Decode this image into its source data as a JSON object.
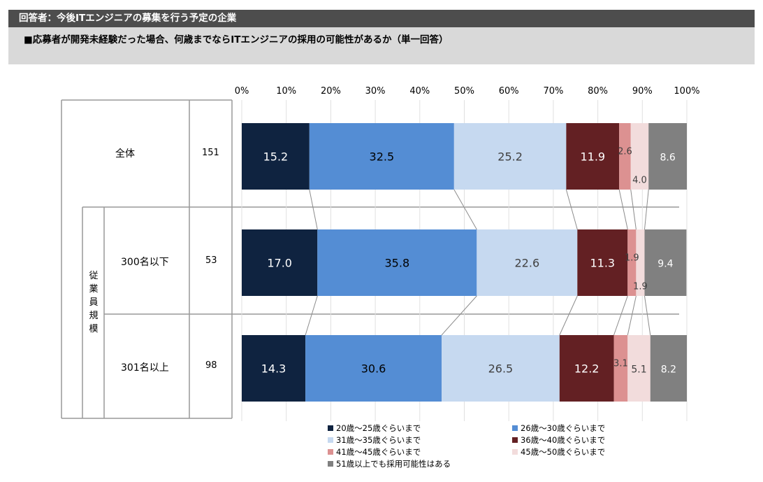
{
  "header": {
    "title": "回答者：今後ITエンジニアの募集を行う予定の企業",
    "subtitle": "■応募者が開発未経験だった場合、何歳までならITエンジニアの採用の可能性があるか（単一回答）"
  },
  "table": {
    "group_label": "従業員規模",
    "rows": [
      {
        "label": "全体",
        "n": "151"
      },
      {
        "label": "300名以下",
        "n": "53"
      },
      {
        "label": "301名以上",
        "n": "98"
      }
    ]
  },
  "chart_data": {
    "type": "bar",
    "orientation": "horizontal",
    "stacked": true,
    "percent": true,
    "xlim": [
      0,
      100
    ],
    "x_ticks": [
      "0%",
      "10%",
      "20%",
      "30%",
      "40%",
      "50%",
      "60%",
      "70%",
      "80%",
      "90%",
      "100%"
    ],
    "categories": [
      "全体",
      "300名以下",
      "301名以上"
    ],
    "series": [
      {
        "name": "20歳～25歳ぐらいまで",
        "color": "#0f2340",
        "values": [
          15.2,
          17.0,
          14.3
        ]
      },
      {
        "name": "26歳～30歳ぐらいまで",
        "color": "#548dd4",
        "values": [
          32.5,
          35.8,
          30.6
        ]
      },
      {
        "name": "31歳～35歳ぐらいまで",
        "color": "#c6d9f0",
        "values": [
          25.2,
          22.6,
          26.5
        ]
      },
      {
        "name": "36歳～40歳ぐらいまで",
        "color": "#632023",
        "values": [
          11.9,
          11.3,
          12.2
        ]
      },
      {
        "name": "41歳～45歳ぐらいまで",
        "color": "#dc9191",
        "values": [
          2.6,
          1.9,
          3.1
        ]
      },
      {
        "name": "45歳～50歳ぐらいまで",
        "color": "#f2dcdc",
        "values": [
          4.0,
          1.9,
          5.1
        ]
      },
      {
        "name": "51歳以上でも採用可能性はある",
        "color": "#808080",
        "values": [
          8.6,
          9.4,
          8.2
        ]
      }
    ],
    "label_colors": [
      "#ffffff",
      "#000000",
      "#404040",
      "#ffffff",
      "#404040",
      "#404040",
      "#ffffff"
    ],
    "grid": true,
    "legend_position": "bottom"
  }
}
